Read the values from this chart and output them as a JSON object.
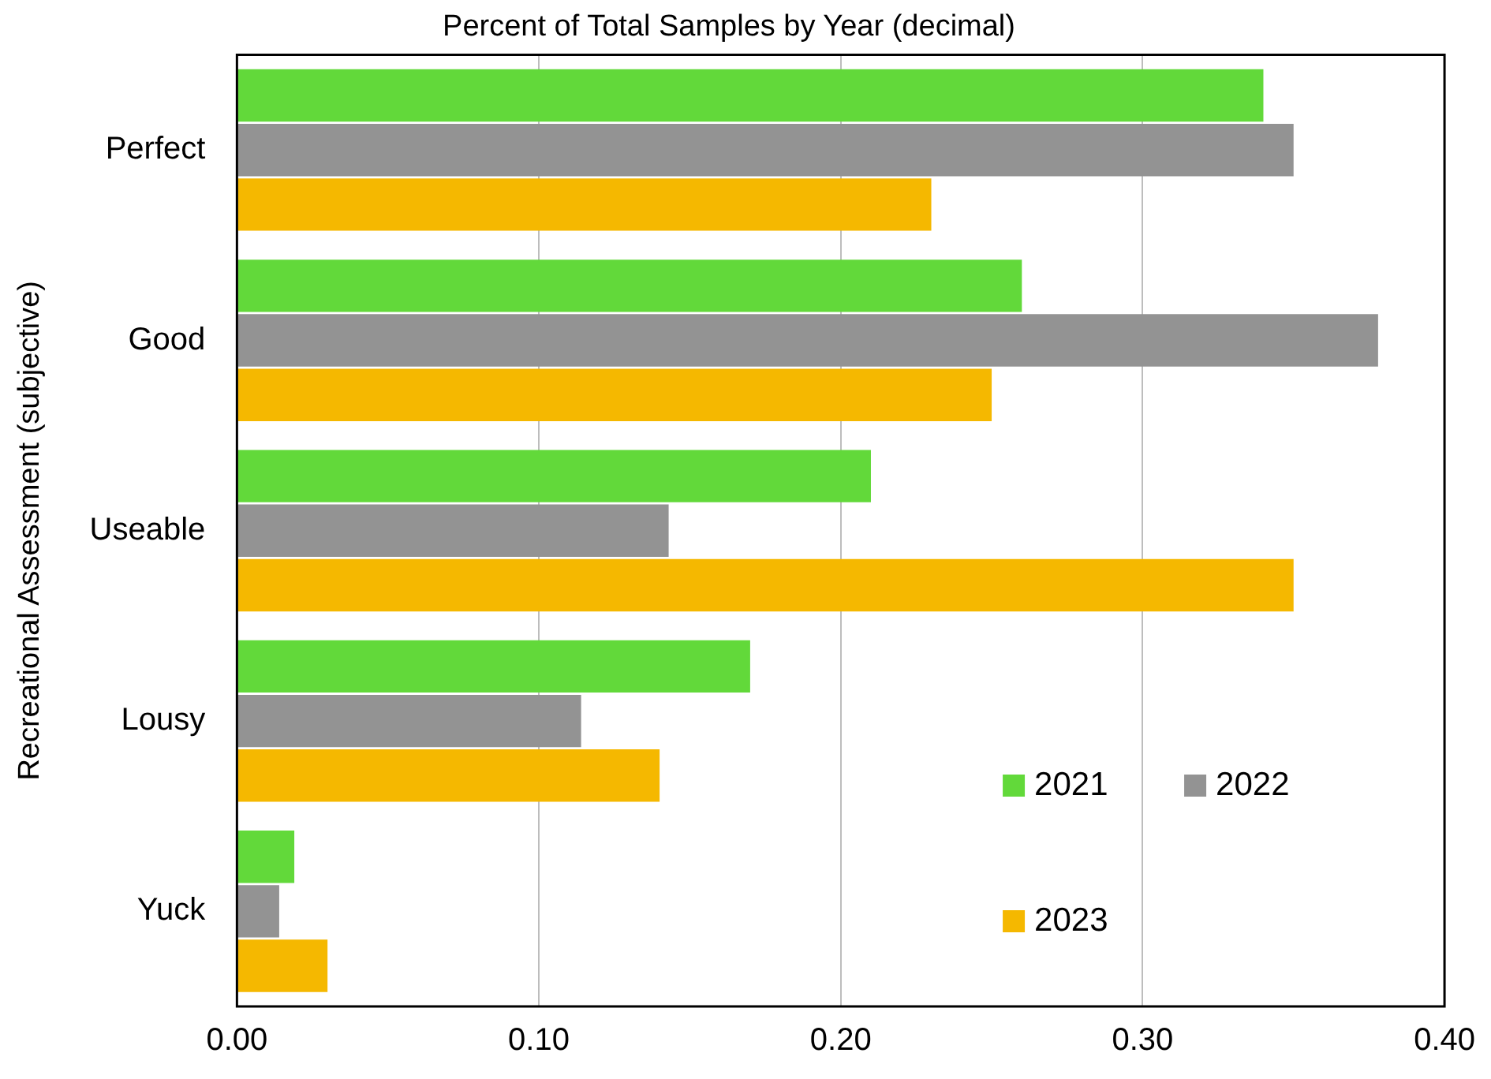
{
  "chart_data": {
    "type": "bar",
    "orientation": "horizontal",
    "title": "Percent of Total Samples by Year (decimal)",
    "ylabel": "Recreational Assessment (subjective)",
    "categories": [
      "Perfect",
      "Good",
      "Useable",
      "Lousy",
      "Yuck"
    ],
    "series": [
      {
        "name": "2021",
        "color": "#62d93a",
        "values": [
          0.34,
          0.26,
          0.21,
          0.17,
          0.019
        ]
      },
      {
        "name": "2022",
        "color": "#939393",
        "values": [
          0.35,
          0.378,
          0.143,
          0.114,
          0.014
        ]
      },
      {
        "name": "2023",
        "color": "#f5b800",
        "values": [
          0.23,
          0.25,
          0.35,
          0.14,
          0.03
        ]
      }
    ],
    "xlim": [
      0,
      0.4
    ],
    "xticks": [
      {
        "value": 0,
        "label": "0.00"
      },
      {
        "value": 0.1,
        "label": "0.10"
      },
      {
        "value": 0.2,
        "label": "0.20"
      },
      {
        "value": 0.3,
        "label": "0.30"
      },
      {
        "value": 0.4,
        "label": "0.40"
      }
    ],
    "grid": "x",
    "legend": "bottom right"
  }
}
